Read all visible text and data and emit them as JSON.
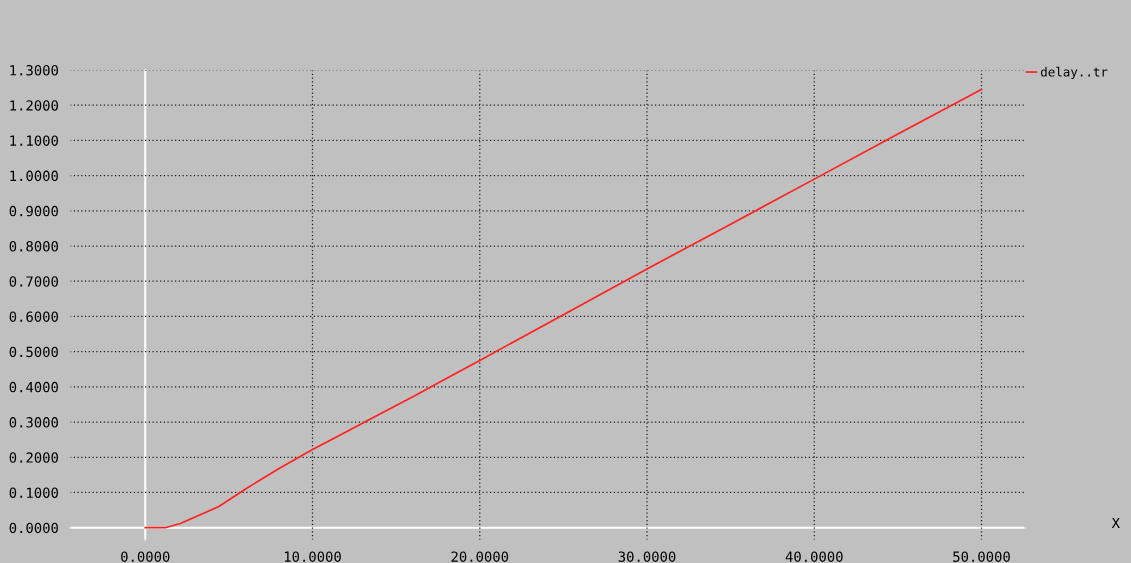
{
  "chart_data": {
    "type": "line",
    "annotations": [
      "X"
    ],
    "series": [
      {
        "name": "delay..tr",
        "color": "#ff2020",
        "x": [
          0,
          1.2,
          2.1,
          4.4,
          6,
          8,
          10,
          12,
          14,
          16,
          18,
          20,
          25,
          30,
          35,
          40,
          45,
          50
        ],
        "values": [
          0,
          0,
          0.012,
          0.06,
          0.11,
          0.168,
          0.222,
          0.272,
          0.322,
          0.372,
          0.424,
          0.475,
          0.605,
          0.735,
          0.862,
          0.99,
          1.118,
          1.245
        ]
      }
    ],
    "xlim": [
      -4.5,
      52.6
    ],
    "ylim": [
      -0.035,
      1.3
    ],
    "xticks": [
      {
        "value": 0,
        "label": "0.0000"
      },
      {
        "value": 10,
        "label": "10.0000"
      },
      {
        "value": 20,
        "label": "20.0000"
      },
      {
        "value": 30,
        "label": "30.0000"
      },
      {
        "value": 40,
        "label": "40.0000"
      },
      {
        "value": 50,
        "label": "50.0000"
      }
    ],
    "yticks": [
      {
        "value": 0,
        "label": "0.0000"
      },
      {
        "value": 0.1,
        "label": "0.1000"
      },
      {
        "value": 0.2,
        "label": "0.2000"
      },
      {
        "value": 0.3,
        "label": "0.3000"
      },
      {
        "value": 0.4,
        "label": "0.4000"
      },
      {
        "value": 0.5,
        "label": "0.5000"
      },
      {
        "value": 0.6,
        "label": "0.6000"
      },
      {
        "value": 0.7,
        "label": "0.7000"
      },
      {
        "value": 0.8,
        "label": "0.8000"
      },
      {
        "value": 0.9,
        "label": "0.9000"
      },
      {
        "value": 1.0,
        "label": "1.0000"
      },
      {
        "value": 1.1,
        "label": "1.1000"
      },
      {
        "value": 1.2,
        "label": "1.2000"
      },
      {
        "value": 1.3,
        "label": "1.3000"
      }
    ],
    "grid": true,
    "legend": "top right",
    "marker": "none",
    "line_style": "solid"
  }
}
